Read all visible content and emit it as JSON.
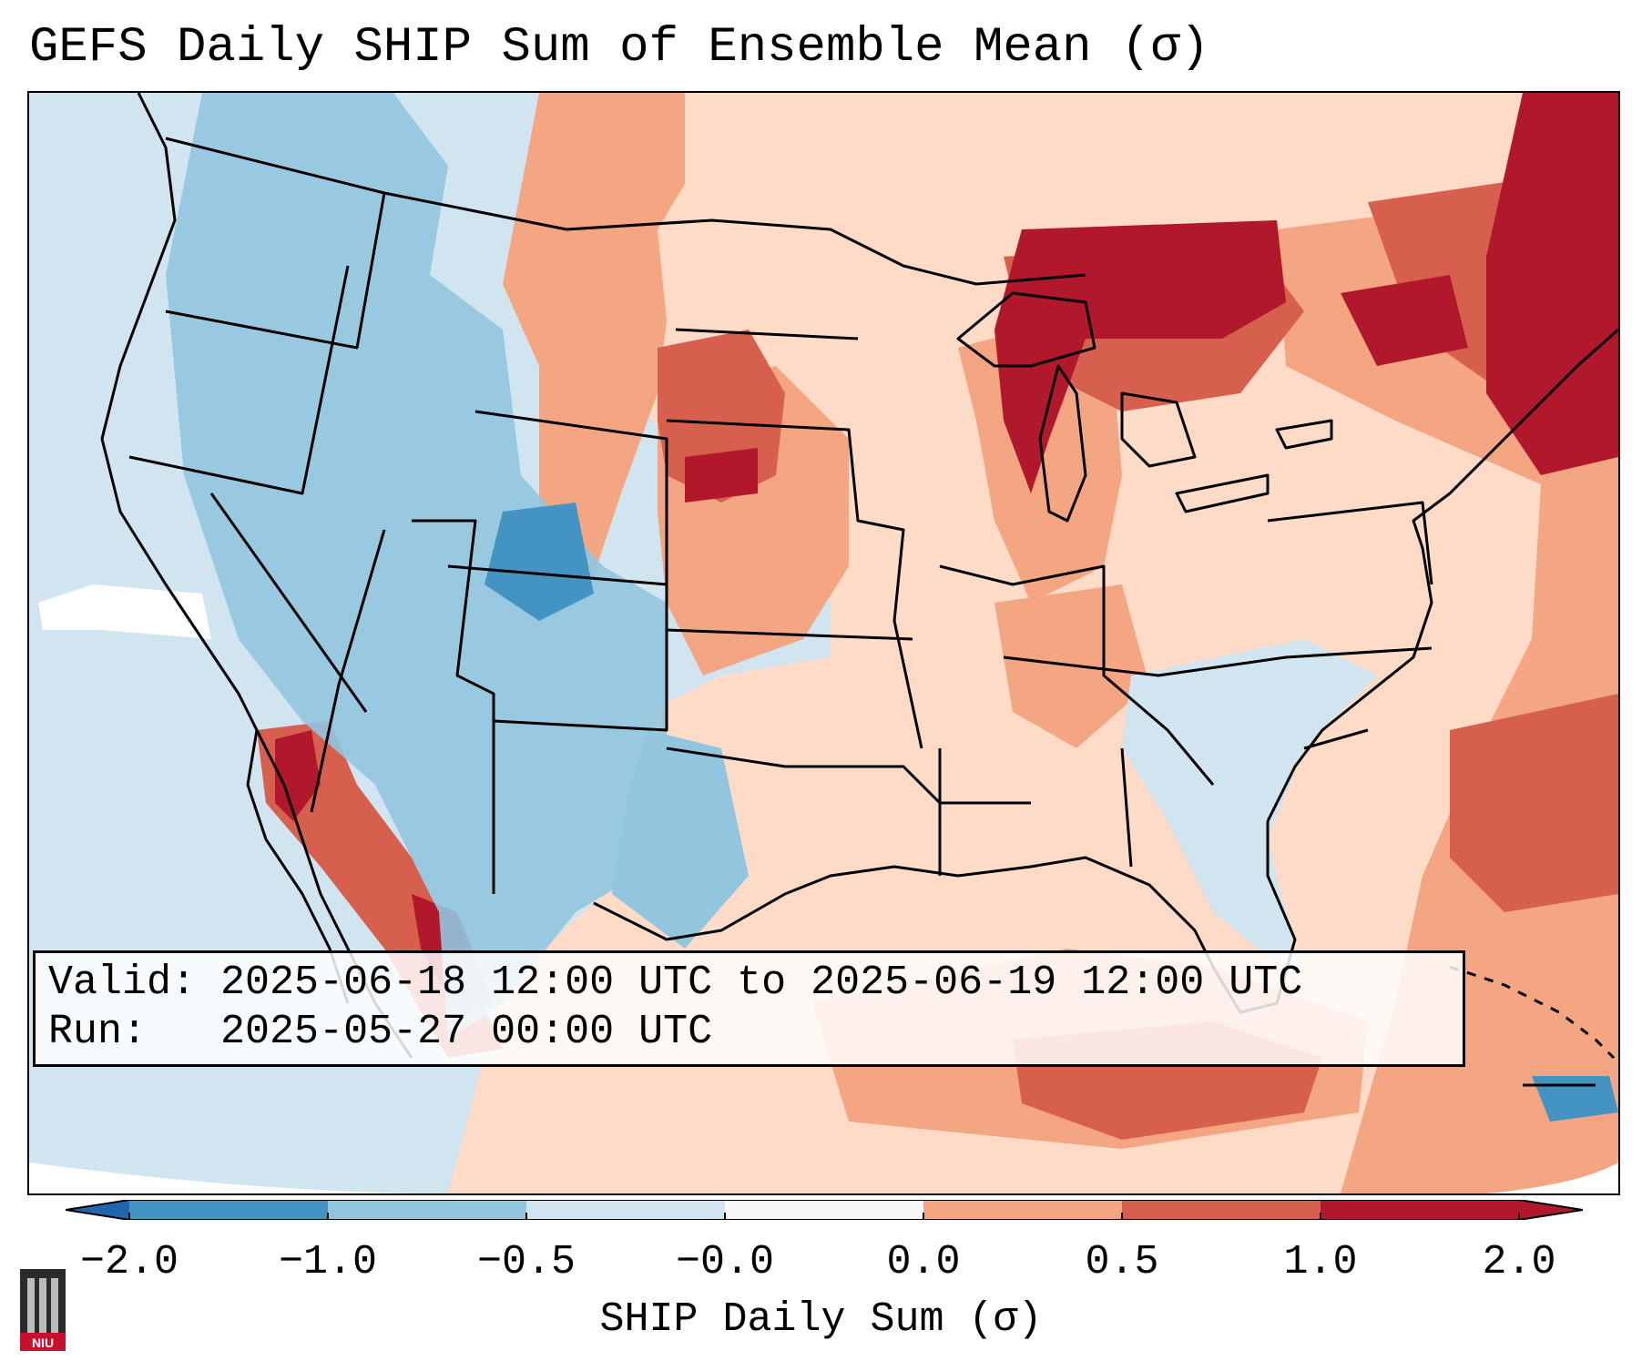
{
  "title": "GEFS Daily SHIP Sum of Ensemble Mean (σ)",
  "info_box": {
    "valid_label": "Valid:",
    "valid_value": "2025-06-18 12:00 UTC to 2025-06-19 12:00 UTC",
    "run_label": "Run:",
    "run_value": "2025-05-27 00:00 UTC"
  },
  "colorbar": {
    "label": "SHIP Daily Sum (σ)",
    "ticks": [
      "−2.0",
      "−1.0",
      "−0.5",
      "−0.0",
      "0.0",
      "0.5",
      "1.0",
      "2.0"
    ],
    "colors": [
      "#4393c3",
      "#92c5de",
      "#d1e5f0",
      "#f7f7f7",
      "#fddbc7",
      "#f4a582",
      "#d6604d",
      "#b2182b"
    ],
    "extend_low_color": "#2166ac",
    "extend_high_color": "#b2182b"
  },
  "logo": {
    "text": "NIU"
  },
  "colors": {
    "ocean": "#d1e5f0",
    "outline": "#000000",
    "missing": "#ffffff"
  }
}
